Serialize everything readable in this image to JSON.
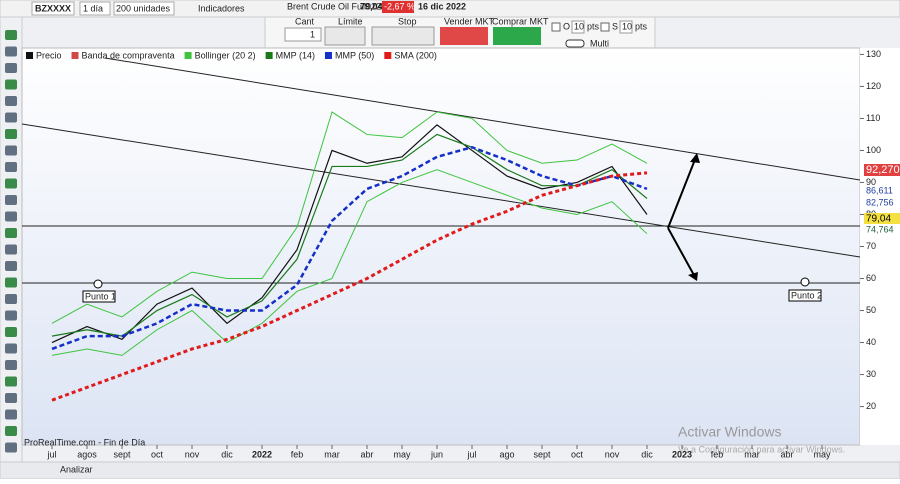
{
  "toolbar": {
    "symbol": "BZXXXX",
    "period": "1 día",
    "units": "200 unidades",
    "indicators": "Indicadores",
    "instrument": "Brent Crude Oil Full0223",
    "price": "79,04",
    "change": "-2,67 %",
    "date": "16 dic 2022"
  },
  "order_panel": {
    "qty_label": "Cant",
    "qty": "1",
    "limit": "Límite",
    "stop": "Stop",
    "sell": "Vender MKT",
    "buy": "Comprar MKT",
    "o_label": "O",
    "o_pts": "10",
    "s_label": "S",
    "s_pts": "10",
    "pts": "pts",
    "multi": "Multi"
  },
  "chart": {
    "type": "line",
    "ylim": [
      8,
      132
    ],
    "yticks": [
      20,
      30,
      40,
      50,
      60,
      70,
      80,
      90,
      100,
      110,
      120,
      130
    ],
    "x_labels": [
      "jul",
      "agos",
      "sept",
      "oct",
      "nov",
      "dic",
      "2022",
      "feb",
      "mar",
      "abr",
      "may",
      "jun",
      "jul",
      "ago",
      "sept",
      "oct",
      "nov",
      "dic",
      "2023",
      "feb",
      "mar",
      "abr",
      "may"
    ],
    "band_label": "Banda de compraventa",
    "series": [
      {
        "name": "Precio",
        "color": "#111111",
        "values": [
          40,
          45,
          41,
          52,
          57,
          46,
          54,
          69,
          100,
          96,
          98,
          108,
          100,
          92,
          88,
          90,
          95,
          80,
          null,
          null,
          null,
          null,
          null
        ]
      },
      {
        "name": "MMP (14)",
        "color": "#1a7a1a",
        "values": [
          42,
          44,
          42,
          50,
          55,
          48,
          53,
          66,
          95,
          95,
          97,
          105,
          101,
          94,
          89,
          89,
          94,
          85,
          null,
          null,
          null,
          null,
          null
        ]
      },
      {
        "name": "MMP (50)",
        "color": "#1530c8",
        "values": [
          38,
          42,
          42,
          46,
          52,
          50,
          50,
          58,
          78,
          88,
          92,
          98,
          101,
          97,
          92,
          89,
          92,
          88,
          null,
          null,
          null,
          null,
          null
        ]
      },
      {
        "name": "SMA (200)",
        "color": "#e01b1b",
        "values": [
          22,
          26,
          30,
          34,
          38,
          41,
          45,
          50,
          55,
          60,
          66,
          72,
          77,
          81,
          86,
          89,
          92,
          93,
          null,
          null,
          null,
          null,
          null
        ]
      }
    ],
    "bollinger": {
      "name": "Bollinger (20 2)",
      "color": "#3ec43e",
      "upper": [
        46,
        52,
        48,
        56,
        62,
        60,
        60,
        76,
        112,
        105,
        104,
        112,
        110,
        100,
        96,
        97,
        102,
        96,
        null,
        null,
        null,
        null,
        null
      ],
      "lower": [
        36,
        38,
        36,
        44,
        50,
        40,
        46,
        56,
        60,
        84,
        90,
        94,
        90,
        86,
        82,
        80,
        84,
        74,
        null,
        null,
        null,
        null,
        null
      ]
    },
    "price_labels": [
      "92,270",
      "86,611",
      "82,756",
      "79,04",
      "74,764"
    ],
    "annotations": [
      "Punto 1",
      "Punto 2"
    ],
    "footer": "ProRealTime.com - Fin de Día"
  },
  "status": {
    "analyze": "Analizar",
    "watermark": "Activar Windows",
    "watermark_sub": "Ve a Configuración para activar Windows."
  }
}
